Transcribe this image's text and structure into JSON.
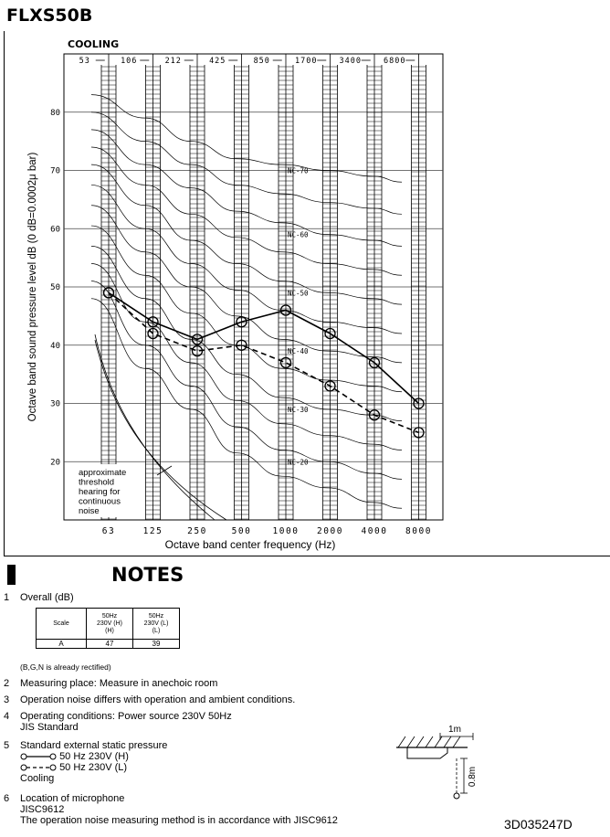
{
  "model": "FLXS50B",
  "chart_data": {
    "type": "line",
    "mode_label": "COOLING",
    "xlabel": "Octave band center frequency (Hz)",
    "ylabel": "Octave band sound pressure level dB (0 dB=0.0002μ bar)",
    "x_ticks": [
      "63",
      "125",
      "250",
      "500",
      "1000",
      "2000",
      "4000",
      "8000"
    ],
    "band_edges": [
      "53",
      "106",
      "212",
      "425",
      "850",
      "1700",
      "3400",
      "6800"
    ],
    "y_ticks": [
      20,
      30,
      40,
      50,
      60,
      70,
      80
    ],
    "ylim": [
      10,
      90
    ],
    "nc_curves": [
      {
        "label": "NC-70",
        "values": [
          83,
          79,
          75,
          72,
          71,
          70,
          69,
          68
        ]
      },
      {
        "label": "NC-60",
        "values": [
          77,
          71,
          67,
          63,
          61,
          59,
          58,
          57
        ]
      },
      {
        "label": "NC-50",
        "values": [
          71,
          64,
          58,
          54,
          51,
          49,
          48,
          47
        ]
      },
      {
        "label": "NC-40",
        "values": [
          64,
          56,
          50,
          45,
          41,
          39,
          38,
          37
        ]
      },
      {
        "label": "NC-30",
        "values": [
          57,
          48,
          41,
          35,
          31,
          29,
          28,
          27
        ]
      },
      {
        "label": "NC-20",
        "values": [
          51,
          40,
          33,
          26,
          22,
          20,
          18,
          17
        ]
      }
    ],
    "series": [
      {
        "name": "50 Hz  230V (H)",
        "style": "solid",
        "values": [
          49,
          44,
          41,
          44,
          46,
          42,
          37,
          30
        ]
      },
      {
        "name": "50 Hz  230V (L)",
        "style": "dashed",
        "values": [
          49,
          42,
          39,
          40,
          37,
          33,
          28,
          25
        ]
      }
    ],
    "threshold_label": [
      "approximate",
      "threshold",
      "hearing for",
      "continuous",
      "noise"
    ]
  },
  "notes": {
    "title": "NOTES",
    "n1": "Overall (dB)",
    "table": {
      "col_scale": "Scale",
      "col_h": [
        "50Hz",
        "230V (H)",
        "(H)"
      ],
      "col_l": [
        "50Hz",
        "230V (L)",
        "(L)"
      ],
      "row_scale": "A",
      "row_h": "47",
      "row_l": "39"
    },
    "rectified": "(B,G,N is already rectified)",
    "n2": "Measuring place: Measure in anechoic room",
    "n3": "Operation noise differs with operation and ambient conditions.",
    "n4a": "Operating conditions: Power source 230V 50Hz",
    "n4b": "JIS Standard",
    "n5a": "Standard external static pressure",
    "n5b": "50 Hz  230V (H)",
    "n5c": "50 Hz  230V (L)",
    "n5d": "Cooling",
    "n6a": "Location of microphone",
    "n6b": "JISC9612",
    "n6c": "The operation noise measuring method is in accordance with JISC9612",
    "dim_horizontal": "1m",
    "dim_vertical": "0.8m",
    "numbers": [
      "1",
      "2",
      "3",
      "4",
      "5",
      "6"
    ]
  },
  "doc_id": "3D035247D"
}
